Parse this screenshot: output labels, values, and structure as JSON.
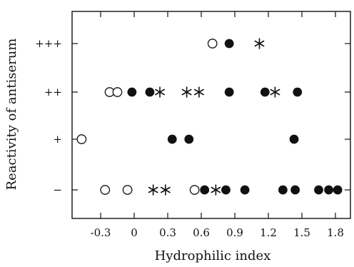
{
  "chart_data": {
    "type": "scatter",
    "title": "",
    "xlabel": "Hydrophilic index",
    "ylabel": "Reactivity of antiserum",
    "xlim": [
      -0.6,
      2.0
    ],
    "x_ticks": [
      "-0.3",
      "0.3",
      "0.6",
      "0.9",
      "1.2",
      "1.5",
      "1.8",
      "0"
    ],
    "x_tick_values": [
      -0.3,
      0.3,
      0.6,
      0.9,
      1.2,
      1.5,
      1.8,
      0.0
    ],
    "y_categories": [
      "−",
      "+",
      "++",
      "+++"
    ],
    "grid": false,
    "legend": "none",
    "series": [
      {
        "marker": "open-circle",
        "points": [
          {
            "x": 0.7,
            "y": "+++"
          },
          {
            "x": -0.22,
            "y": "++"
          },
          {
            "x": -0.15,
            "y": "++"
          },
          {
            "x": -0.47,
            "y": "+"
          },
          {
            "x": -0.26,
            "y": "−"
          },
          {
            "x": -0.06,
            "y": "−"
          },
          {
            "x": 0.54,
            "y": "−"
          }
        ]
      },
      {
        "marker": "filled-circle",
        "points": [
          {
            "x": 0.85,
            "y": "+++"
          },
          {
            "x": -0.02,
            "y": "++"
          },
          {
            "x": 0.14,
            "y": "++"
          },
          {
            "x": 0.85,
            "y": "++"
          },
          {
            "x": 1.17,
            "y": "++"
          },
          {
            "x": 1.46,
            "y": "++"
          },
          {
            "x": 0.34,
            "y": "+"
          },
          {
            "x": 0.49,
            "y": "+"
          },
          {
            "x": 1.43,
            "y": "+"
          },
          {
            "x": 0.63,
            "y": "−"
          },
          {
            "x": 0.82,
            "y": "−"
          },
          {
            "x": 0.99,
            "y": "−"
          },
          {
            "x": 1.33,
            "y": "−"
          },
          {
            "x": 1.44,
            "y": "−"
          },
          {
            "x": 1.65,
            "y": "−"
          },
          {
            "x": 1.74,
            "y": "−"
          },
          {
            "x": 1.82,
            "y": "−"
          }
        ]
      },
      {
        "marker": "asterisk",
        "points": [
          {
            "x": 1.12,
            "y": "+++"
          },
          {
            "x": 0.23,
            "y": "++"
          },
          {
            "x": 0.47,
            "y": "++"
          },
          {
            "x": 0.58,
            "y": "++"
          },
          {
            "x": 1.26,
            "y": "++"
          },
          {
            "x": 0.17,
            "y": "−"
          },
          {
            "x": 0.28,
            "y": "−"
          },
          {
            "x": 0.73,
            "y": "−"
          }
        ]
      }
    ]
  },
  "colors": {
    "ink": "#111111",
    "background": "#ffffff"
  }
}
